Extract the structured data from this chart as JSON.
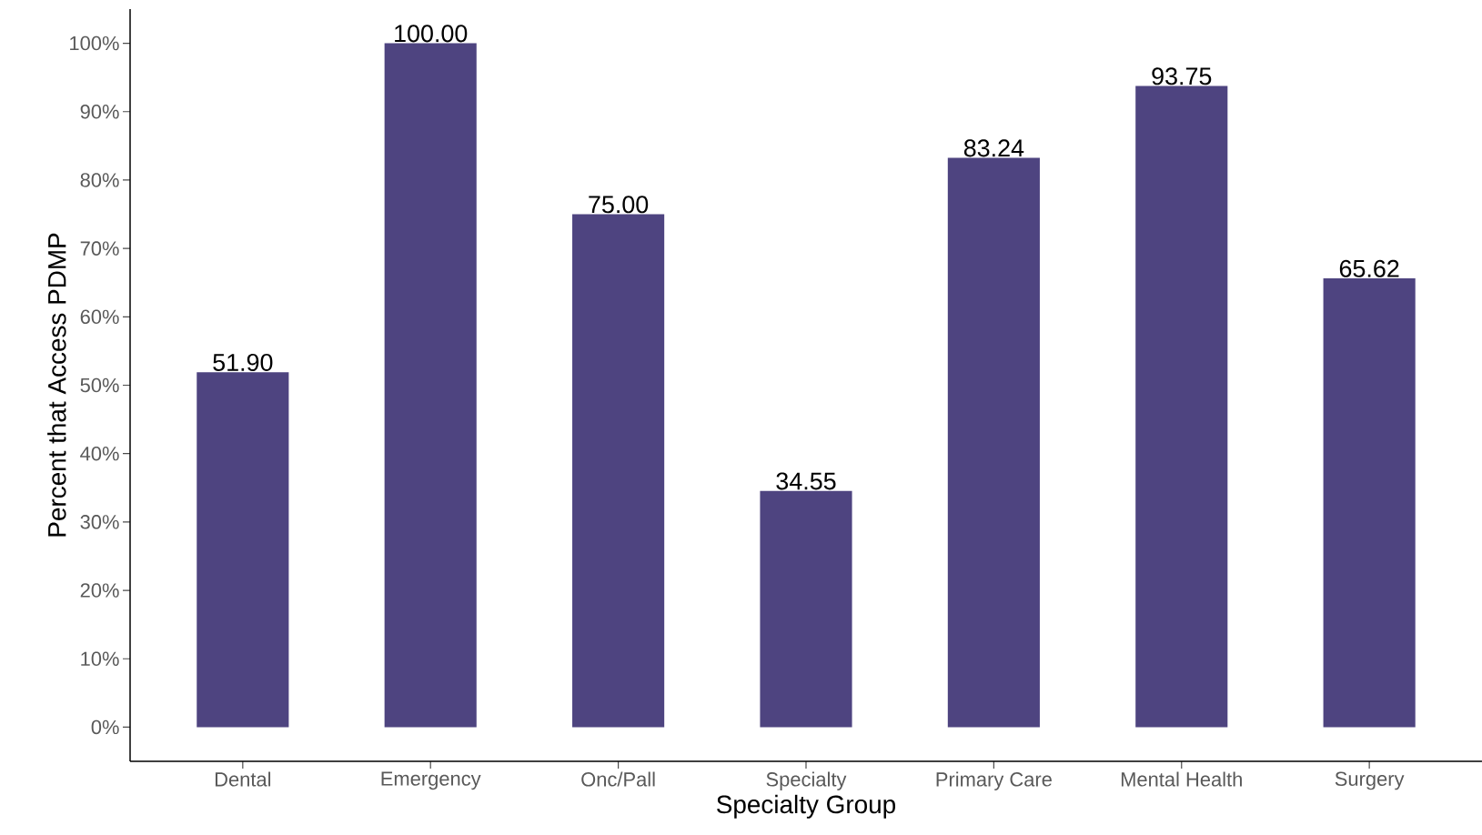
{
  "chart_data": {
    "type": "bar",
    "xlabel": "Specialty Group",
    "ylabel": "Percent that Access PDMP",
    "categories": [
      "Dental",
      "Emergency",
      "Onc/Pall",
      "Specialty",
      "Primary Care",
      "Mental Health",
      "Surgery"
    ],
    "values": [
      51.9,
      100.0,
      75.0,
      34.55,
      83.24,
      93.75,
      65.62
    ],
    "value_labels": [
      "51.90",
      "100.00",
      "75.00",
      "34.55",
      "83.24",
      "93.75",
      "65.62"
    ],
    "color": "#4e4480",
    "ylim": [
      -5,
      105
    ],
    "yticks": [
      {
        "value": 0,
        "label": "0%"
      },
      {
        "value": 10,
        "label": "10%"
      },
      {
        "value": 20,
        "label": "20%"
      },
      {
        "value": 30,
        "label": "30%"
      },
      {
        "value": 40,
        "label": "40%"
      },
      {
        "value": 50,
        "label": "50%"
      },
      {
        "value": 60,
        "label": "60%"
      },
      {
        "value": 70,
        "label": "70%"
      },
      {
        "value": 80,
        "label": "80%"
      },
      {
        "value": 90,
        "label": "90%"
      },
      {
        "value": 100,
        "label": "100%"
      }
    ]
  }
}
